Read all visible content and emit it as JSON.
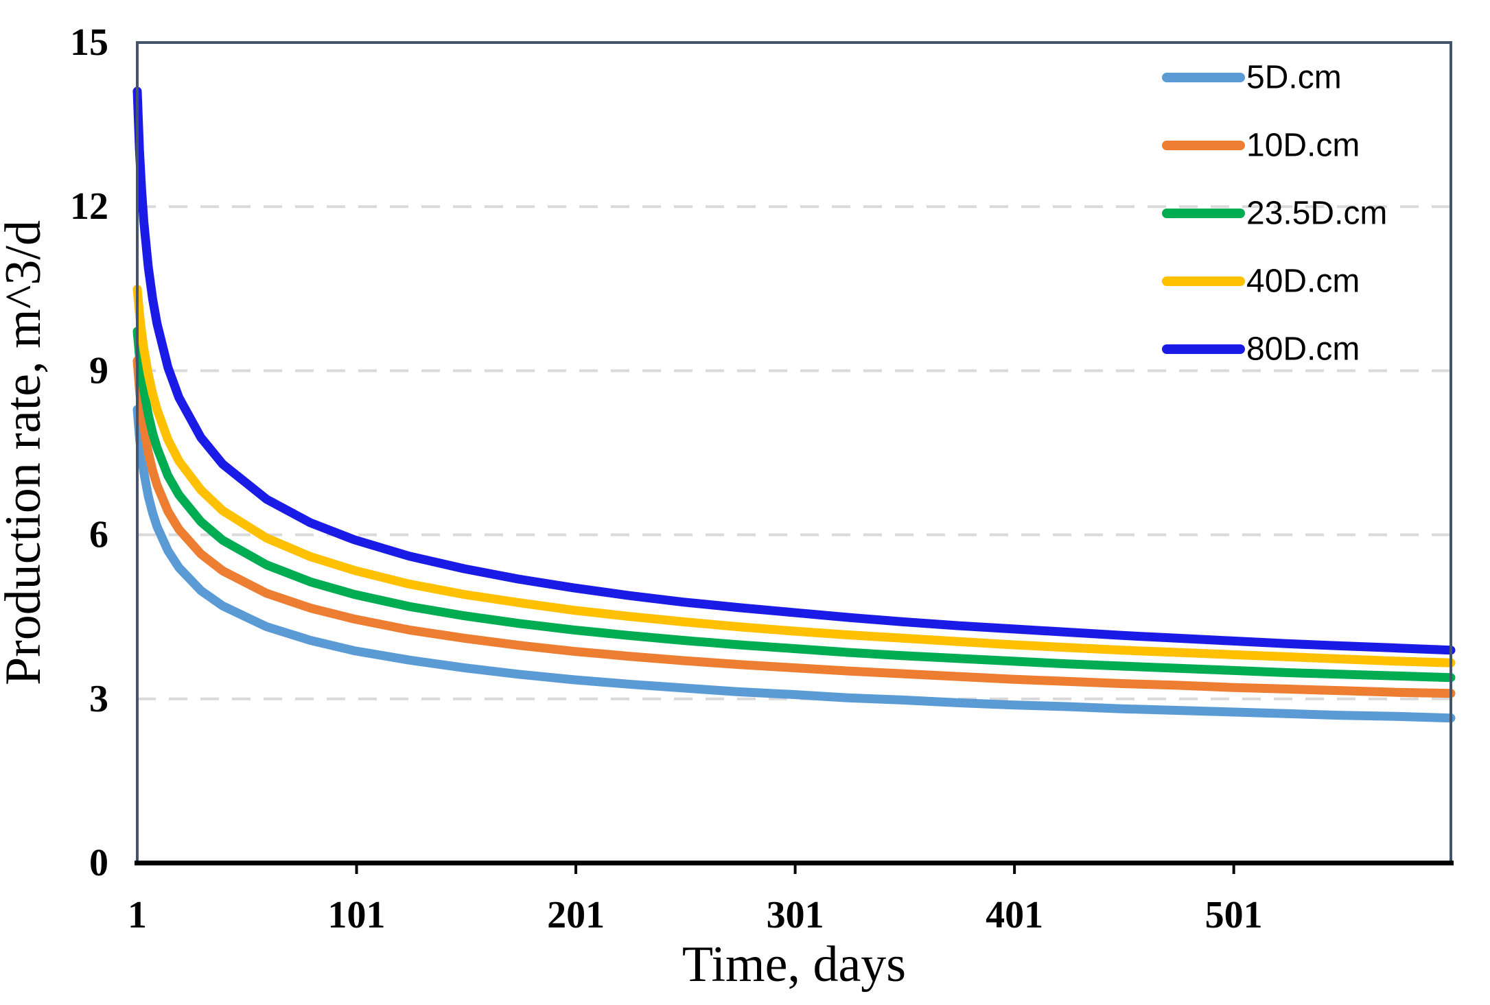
{
  "chart_data": {
    "type": "line",
    "title": "",
    "xlabel": "Time, days",
    "ylabel": "Production rate, m^3/d",
    "xlim": [
      1,
      600
    ],
    "ylim": [
      0,
      15
    ],
    "x_ticks": [
      1,
      101,
      201,
      301,
      401,
      501
    ],
    "y_ticks": [
      0,
      3,
      6,
      9,
      12,
      15
    ],
    "grid_y_values": [
      3,
      6,
      9,
      12
    ],
    "grid_style": "dashed",
    "legend_position": "top-right-inside",
    "x": [
      1,
      2,
      3,
      4,
      6,
      8,
      10,
      15,
      20,
      30,
      40,
      60,
      80,
      100,
      125,
      150,
      175,
      200,
      225,
      250,
      275,
      300,
      325,
      350,
      375,
      400,
      425,
      450,
      475,
      500,
      525,
      550,
      575,
      600
    ],
    "series": [
      {
        "name": "5D.cm",
        "color": "#5B9BD5",
        "values": [
          8.29,
          7.79,
          7.43,
          7.14,
          6.71,
          6.4,
          6.15,
          5.71,
          5.4,
          4.98,
          4.7,
          4.32,
          4.07,
          3.88,
          3.71,
          3.57,
          3.45,
          3.35,
          3.27,
          3.2,
          3.13,
          3.08,
          3.02,
          2.98,
          2.93,
          2.89,
          2.86,
          2.82,
          2.79,
          2.76,
          2.73,
          2.7,
          2.68,
          2.65
        ]
      },
      {
        "name": "10D.cm",
        "color": "#ED7D31",
        "values": [
          9.18,
          8.66,
          8.27,
          7.97,
          7.51,
          7.17,
          6.91,
          6.43,
          6.1,
          5.65,
          5.34,
          4.93,
          4.66,
          4.46,
          4.26,
          4.11,
          3.98,
          3.87,
          3.78,
          3.7,
          3.63,
          3.57,
          3.51,
          3.46,
          3.41,
          3.36,
          3.32,
          3.28,
          3.25,
          3.21,
          3.18,
          3.15,
          3.12,
          3.1
        ]
      },
      {
        "name": "23.5D.cm",
        "color": "#00AC52",
        "values": [
          9.72,
          9.27,
          8.92,
          8.64,
          8.2,
          7.86,
          7.59,
          7.08,
          6.73,
          6.24,
          5.9,
          5.45,
          5.14,
          4.91,
          4.69,
          4.52,
          4.38,
          4.26,
          4.16,
          4.07,
          3.99,
          3.92,
          3.85,
          3.79,
          3.74,
          3.69,
          3.64,
          3.6,
          3.56,
          3.52,
          3.48,
          3.45,
          3.42,
          3.39
        ]
      },
      {
        "name": "40D.cm",
        "color": "#FFC000",
        "values": [
          10.49,
          10.05,
          9.7,
          9.4,
          8.94,
          8.58,
          8.29,
          7.74,
          7.35,
          6.82,
          6.44,
          5.94,
          5.6,
          5.35,
          5.1,
          4.91,
          4.76,
          4.62,
          4.51,
          4.41,
          4.32,
          4.24,
          4.17,
          4.11,
          4.05,
          3.99,
          3.94,
          3.89,
          3.85,
          3.81,
          3.77,
          3.73,
          3.69,
          3.66
        ]
      },
      {
        "name": "80D.cm",
        "color": "#1B1BE8",
        "values": [
          14.11,
          13.04,
          12.29,
          11.72,
          10.9,
          10.31,
          9.86,
          9.06,
          8.51,
          7.78,
          7.29,
          6.65,
          6.22,
          5.91,
          5.61,
          5.38,
          5.19,
          5.03,
          4.89,
          4.77,
          4.67,
          4.58,
          4.49,
          4.41,
          4.34,
          4.28,
          4.22,
          4.16,
          4.11,
          4.06,
          4.01,
          3.97,
          3.93,
          3.89
        ]
      }
    ]
  },
  "styles": {
    "plot_border_color": "#44546A",
    "axis_line_color": "#000000",
    "gridline_color": "#D9D9D9",
    "text_color": "#000000",
    "background": "#FFFFFF",
    "curve_width": 13,
    "legend_swatch_width": 14
  }
}
